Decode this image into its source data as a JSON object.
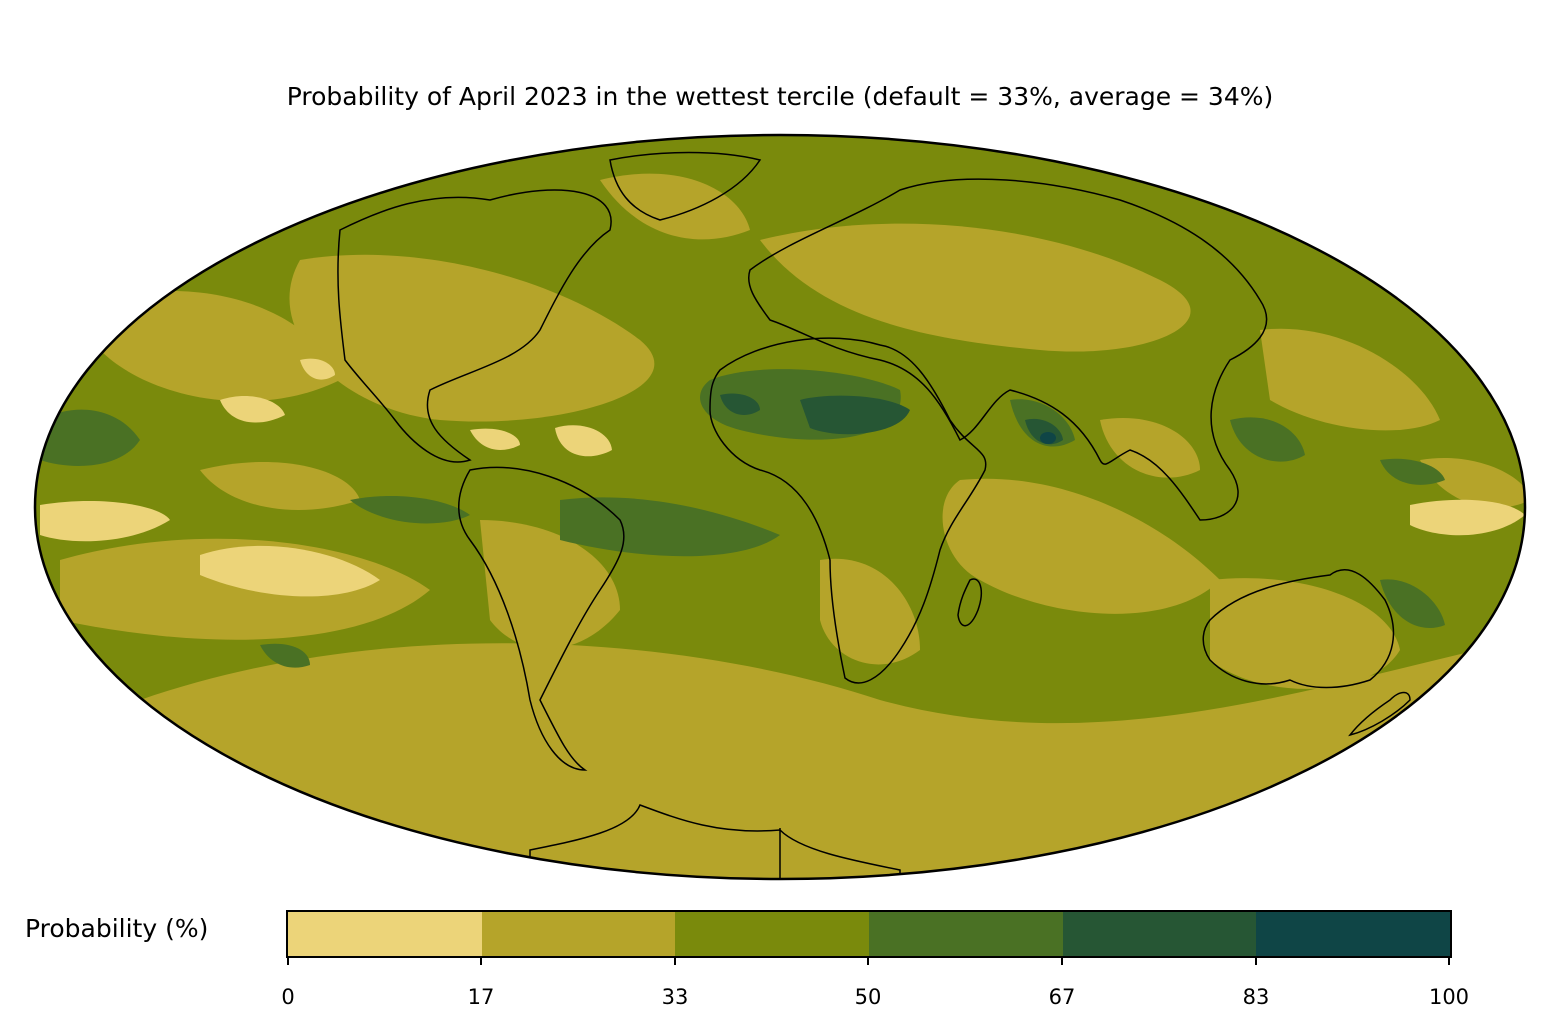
{
  "title": "Probability of April 2023 in the wettest tercile (default = 33%, average = 34%)",
  "projection": "Mollweide",
  "colorbar": {
    "label": "Probability (%)",
    "ticks": [
      "0",
      "17",
      "33",
      "50",
      "67",
      "83",
      "100"
    ],
    "colors": [
      "#ecd479",
      "#b5a42a",
      "#7a8a0c",
      "#4a7124",
      "#265634",
      "#0f4546"
    ]
  }
}
